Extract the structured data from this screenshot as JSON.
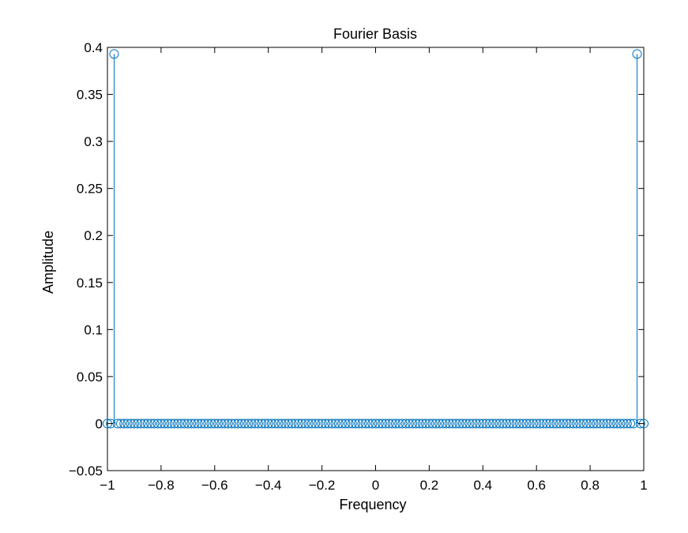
{
  "chart_data": {
    "type": "stem",
    "title": "Fourier Basis",
    "xlabel": "Frequency",
    "ylabel": "Amplitude",
    "xlim": [
      -1,
      1
    ],
    "ylim": [
      -0.05,
      0.4
    ],
    "xticks": [
      -1,
      -0.8,
      -0.6,
      -0.4,
      -0.2,
      0,
      0.2,
      0.4,
      0.6,
      0.8,
      1
    ],
    "xtick_labels": [
      "−1",
      "−0.8",
      "−0.6",
      "−0.4",
      "−0.2",
      "0",
      "0.2",
      "0.4",
      "0.6",
      "0.8",
      "1"
    ],
    "yticks": [
      -0.05,
      0,
      0.05,
      0.1,
      0.15,
      0.2,
      0.25,
      0.3,
      0.35,
      0.4
    ],
    "ytick_labels": [
      "−0.05",
      "0",
      "0.05",
      "0.1",
      "0.15",
      "0.2",
      "0.25",
      "0.3",
      "0.35",
      "0.4"
    ],
    "grid": false,
    "series": [
      {
        "color": "#0072BD",
        "x_start": -1,
        "x_step": 0.0125,
        "count": 161,
        "spikes": [
          {
            "x": -0.975,
            "y": 0.393
          },
          {
            "x": 0.975,
            "y": 0.393
          }
        ],
        "baseline_value": 0
      }
    ]
  }
}
